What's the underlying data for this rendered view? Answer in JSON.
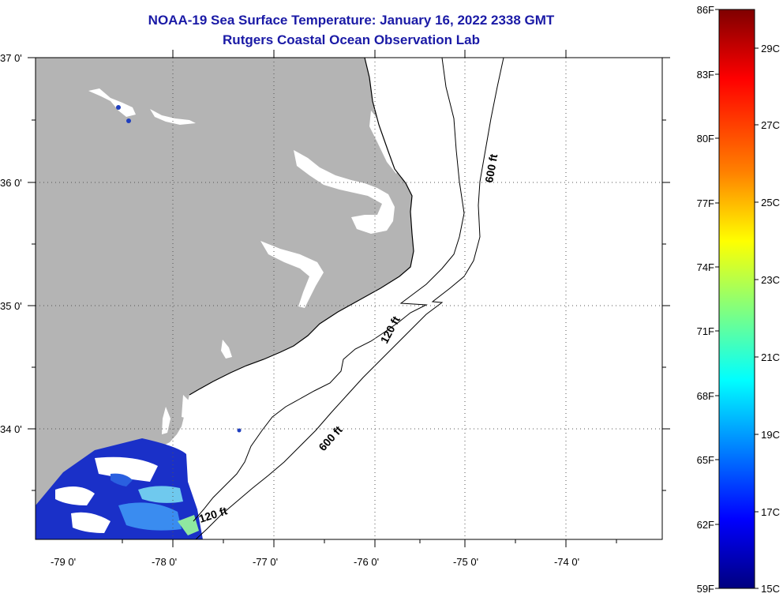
{
  "title": {
    "line1": "NOAA-19 Sea Surface Temperature:  January 16, 2022 2338 GMT",
    "line2": "Rutgers Coastal Ocean Observation Lab"
  },
  "map": {
    "lat_labels": [
      "37 0'",
      "36 0'",
      "35 0'",
      "34 0'"
    ],
    "lon_labels": [
      "-79 0'",
      "-78 0'",
      "-77 0'",
      "-76 0'",
      "-75 0'",
      "-74 0'"
    ],
    "contour_labels": [
      "600 ft",
      "120 ft",
      "600 ft",
      "120 ft"
    ],
    "colors": {
      "land": "#b4b4b4",
      "water": "#ffffff",
      "contour": "#000000",
      "grid": "#555555"
    }
  },
  "colorbar": {
    "fahrenheit": [
      "86F",
      "83F",
      "80F",
      "77F",
      "74F",
      "71F",
      "68F",
      "65F",
      "62F",
      "59F"
    ],
    "celsius": [
      "29C",
      "27C",
      "25C",
      "23C",
      "21C",
      "19C",
      "17C",
      "15C"
    ],
    "range_f": [
      59,
      86
    ],
    "colors_top_to_bottom": [
      "#7f0000",
      "#ff0000",
      "#ff8000",
      "#ffff00",
      "#80ff80",
      "#00ffff",
      "#0080ff",
      "#0000ff",
      "#00007f"
    ]
  }
}
